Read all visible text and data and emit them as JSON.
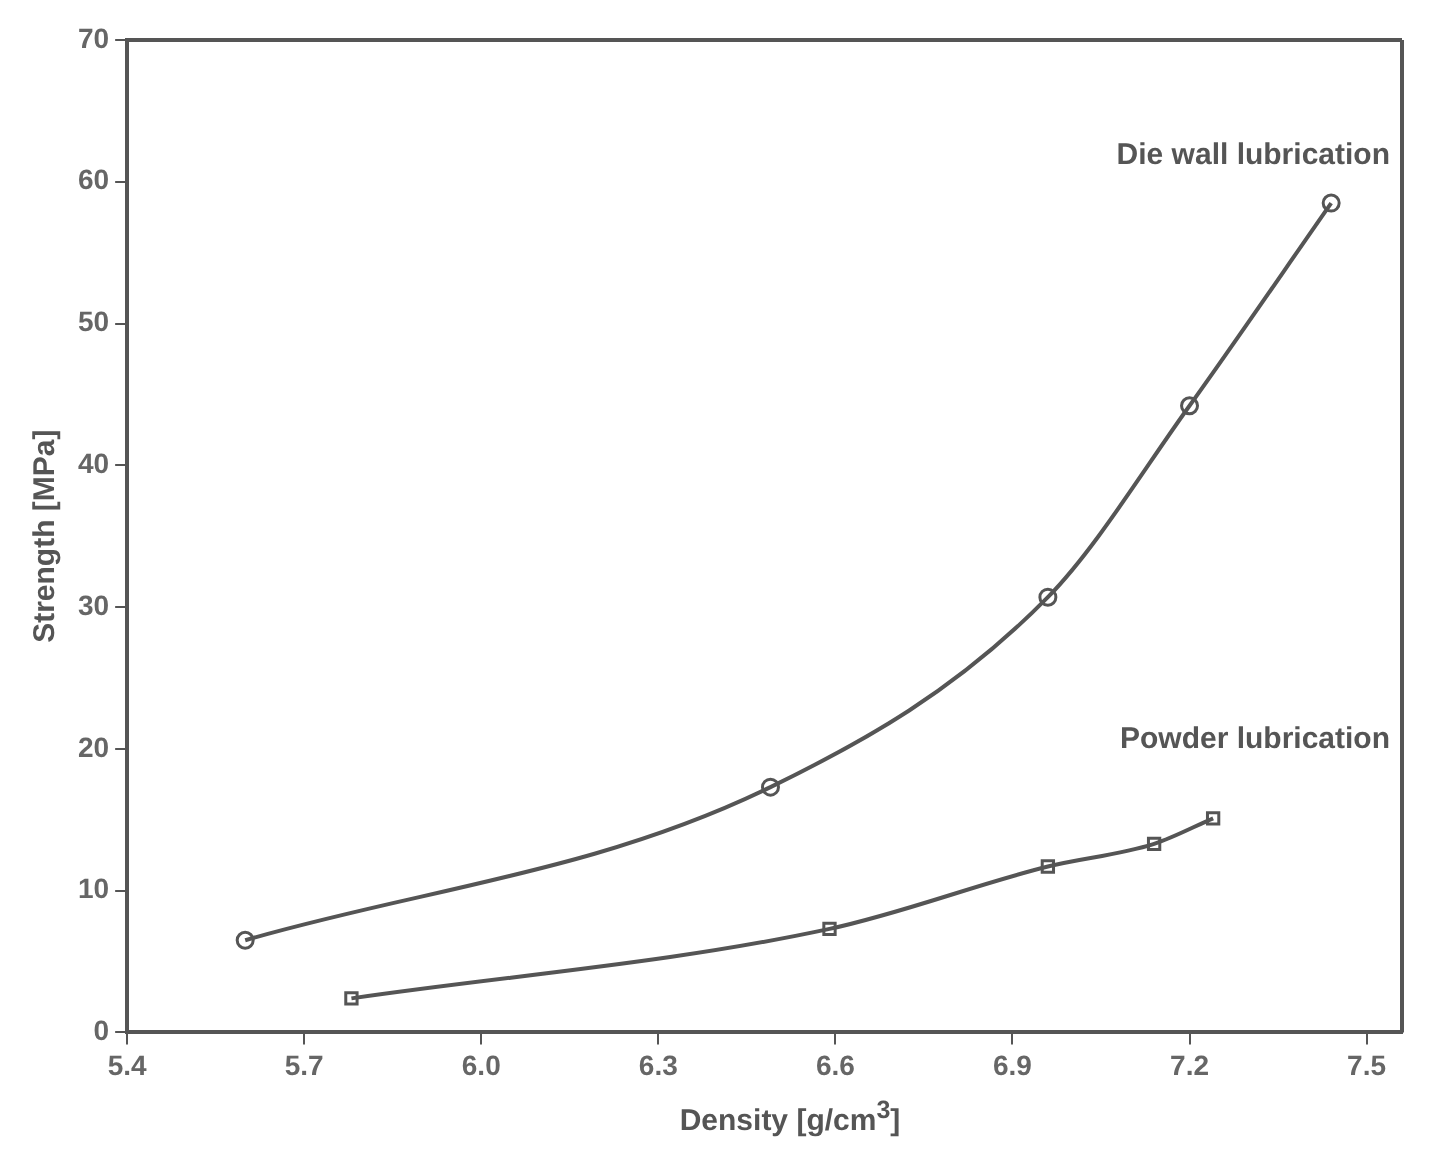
{
  "chart_data": {
    "type": "line",
    "xlabel": "Density [g/cm$^{3}$]",
    "ylabel": "Strength [MPa]",
    "xlim": [
      5.4,
      7.56
    ],
    "xticks": [
      5.4,
      5.7,
      {
        "value": 6,
        "label": "6.0"
      },
      6.3,
      6.6,
      6.9,
      7.2,
      7.5
    ],
    "ylim": [
      0,
      70
    ],
    "yticks": [
      0,
      10,
      20,
      30,
      40,
      50,
      60,
      70
    ],
    "grid": false,
    "legend": false,
    "line_style": "solid",
    "series": [
      {
        "name": "Die wall lubrication",
        "color": "#555555",
        "marker": "circle",
        "x": [
          5.6,
          6.49,
          6.96,
          7.2,
          7.44
        ],
        "values": [
          6.5,
          17.3,
          30.7,
          44.2,
          58.5
        ]
      },
      {
        "name": "Powder lubrication",
        "color": "#555555",
        "marker": "square",
        "x": [
          5.78,
          6.59,
          6.96,
          7.14,
          7.24
        ],
        "values": [
          2.4,
          7.3,
          11.7,
          13.3,
          15.1
        ]
      }
    ]
  }
}
